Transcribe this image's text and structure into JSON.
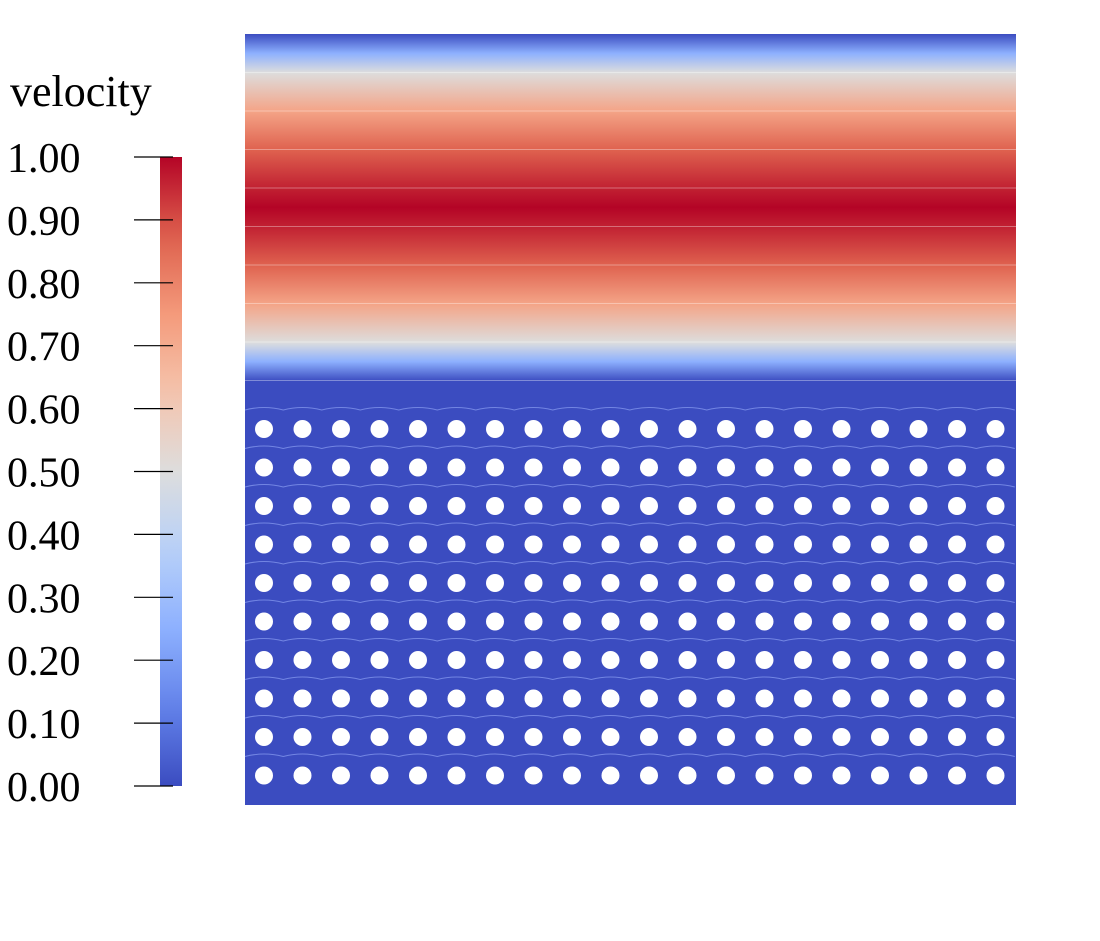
{
  "chart_data": {
    "type": "heatmap",
    "title": "",
    "colorbar": {
      "title": "velocity",
      "min": 0.0,
      "max": 1.0,
      "ticks": [
        {
          "value": 0.0,
          "label": "0.00"
        },
        {
          "value": 0.1,
          "label": "0.10"
        },
        {
          "value": 0.2,
          "label": "0.20"
        },
        {
          "value": 0.3,
          "label": "0.30"
        },
        {
          "value": 0.4,
          "label": "0.40"
        },
        {
          "value": 0.5,
          "label": "0.50"
        },
        {
          "value": 0.6,
          "label": "0.60"
        },
        {
          "value": 0.7,
          "label": "0.70"
        },
        {
          "value": 0.8,
          "label": "0.80"
        },
        {
          "value": 0.9,
          "label": "0.90"
        },
        {
          "value": 1.0,
          "label": "1.00"
        }
      ],
      "colormap": "coolwarm",
      "colors": {
        "low": "#3b4cc0",
        "mid": "#dddddd",
        "high": "#b40426"
      }
    },
    "field": {
      "description_values": "velocity profile varies only vertically; horizontal bands",
      "profile": [
        {
          "y": 1.0,
          "value": 0.0
        },
        {
          "y": 0.975,
          "value": 0.25
        },
        {
          "y": 0.95,
          "value": 0.5
        },
        {
          "y": 0.9,
          "value": 0.72
        },
        {
          "y": 0.85,
          "value": 0.87
        },
        {
          "y": 0.8,
          "value": 0.96
        },
        {
          "y": 0.775,
          "value": 1.0
        },
        {
          "y": 0.75,
          "value": 0.96
        },
        {
          "y": 0.7,
          "value": 0.87
        },
        {
          "y": 0.65,
          "value": 0.72
        },
        {
          "y": 0.6,
          "value": 0.5
        },
        {
          "y": 0.575,
          "value": 0.25
        },
        {
          "y": 0.55,
          "value": 0.0
        },
        {
          "y": 0.0,
          "value": 0.0
        }
      ],
      "obstacle_grid": {
        "rows": 10,
        "columns": 20,
        "shape": "circle",
        "fill": "#ffffff"
      }
    }
  }
}
